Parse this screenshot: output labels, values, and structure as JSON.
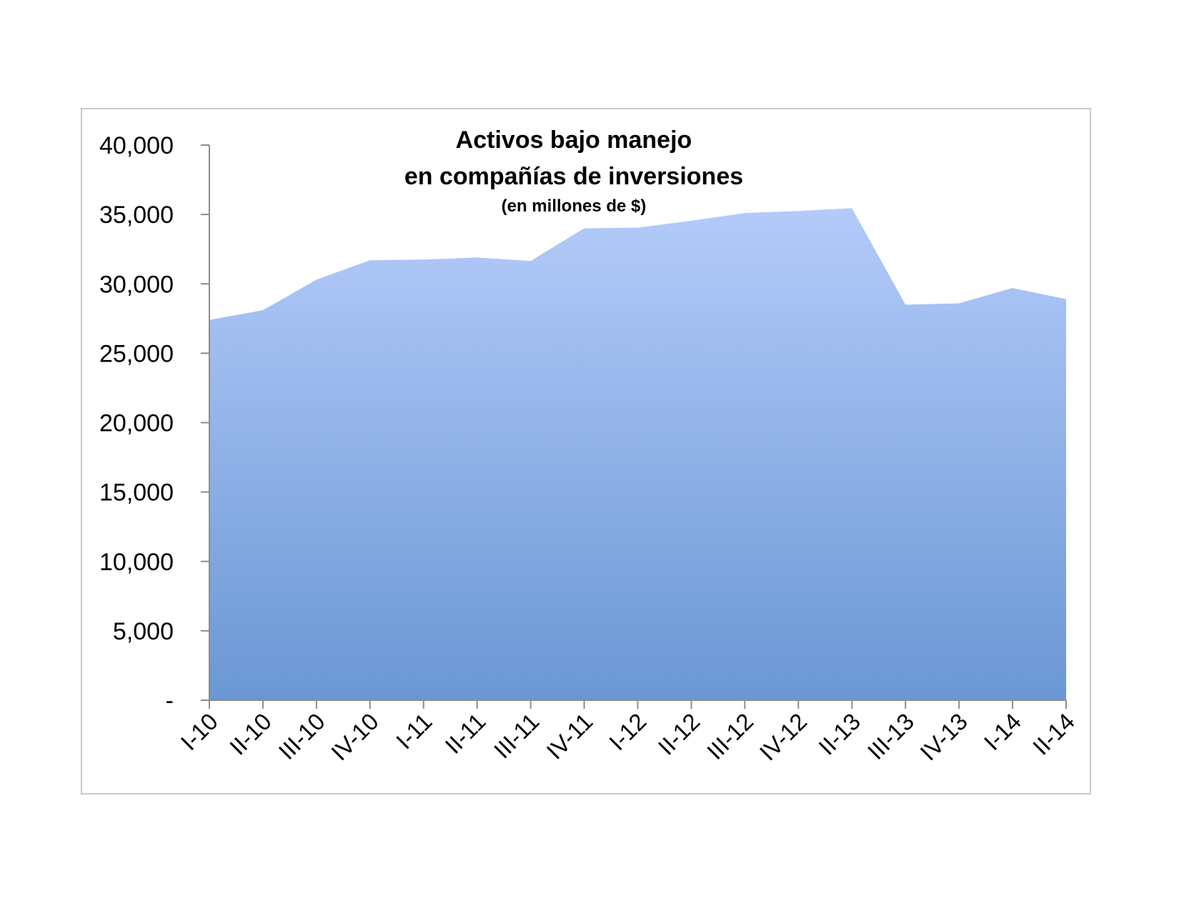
{
  "chart_data": {
    "type": "area",
    "title_lines": [
      "Activos bajo manejo",
      "en compañías de inversiones"
    ],
    "subtitle": "(en millones de $)",
    "categories": [
      "I-10",
      "II-10",
      "III-10",
      "IV-10",
      "I-11",
      "II-11",
      "III-11",
      "IV-11",
      "I-12",
      "II-12",
      "III-12",
      "IV-12",
      "II-13",
      "III-13",
      "IV-13",
      "I-14",
      "II-14"
    ],
    "values": [
      27400,
      28100,
      30300,
      31700,
      31750,
      31900,
      31650,
      34000,
      34050,
      34550,
      35100,
      35250,
      35450,
      28500,
      28600,
      29700,
      28900
    ],
    "ylim": [
      0,
      40000
    ],
    "yticks": [
      0,
      5000,
      10000,
      15000,
      20000,
      25000,
      30000,
      35000,
      40000
    ],
    "ytick_labels": [
      "-",
      "5,000",
      "10,000",
      "15,000",
      "20,000",
      "25,000",
      "30,000",
      "35,000",
      "40,000"
    ],
    "grid": false,
    "legend": "none",
    "colors": {
      "fill_top": "#b4cbfa",
      "fill_bottom": "#6a97d4",
      "axis": "#8c8c8c",
      "frame": "#c9c9c9"
    }
  }
}
